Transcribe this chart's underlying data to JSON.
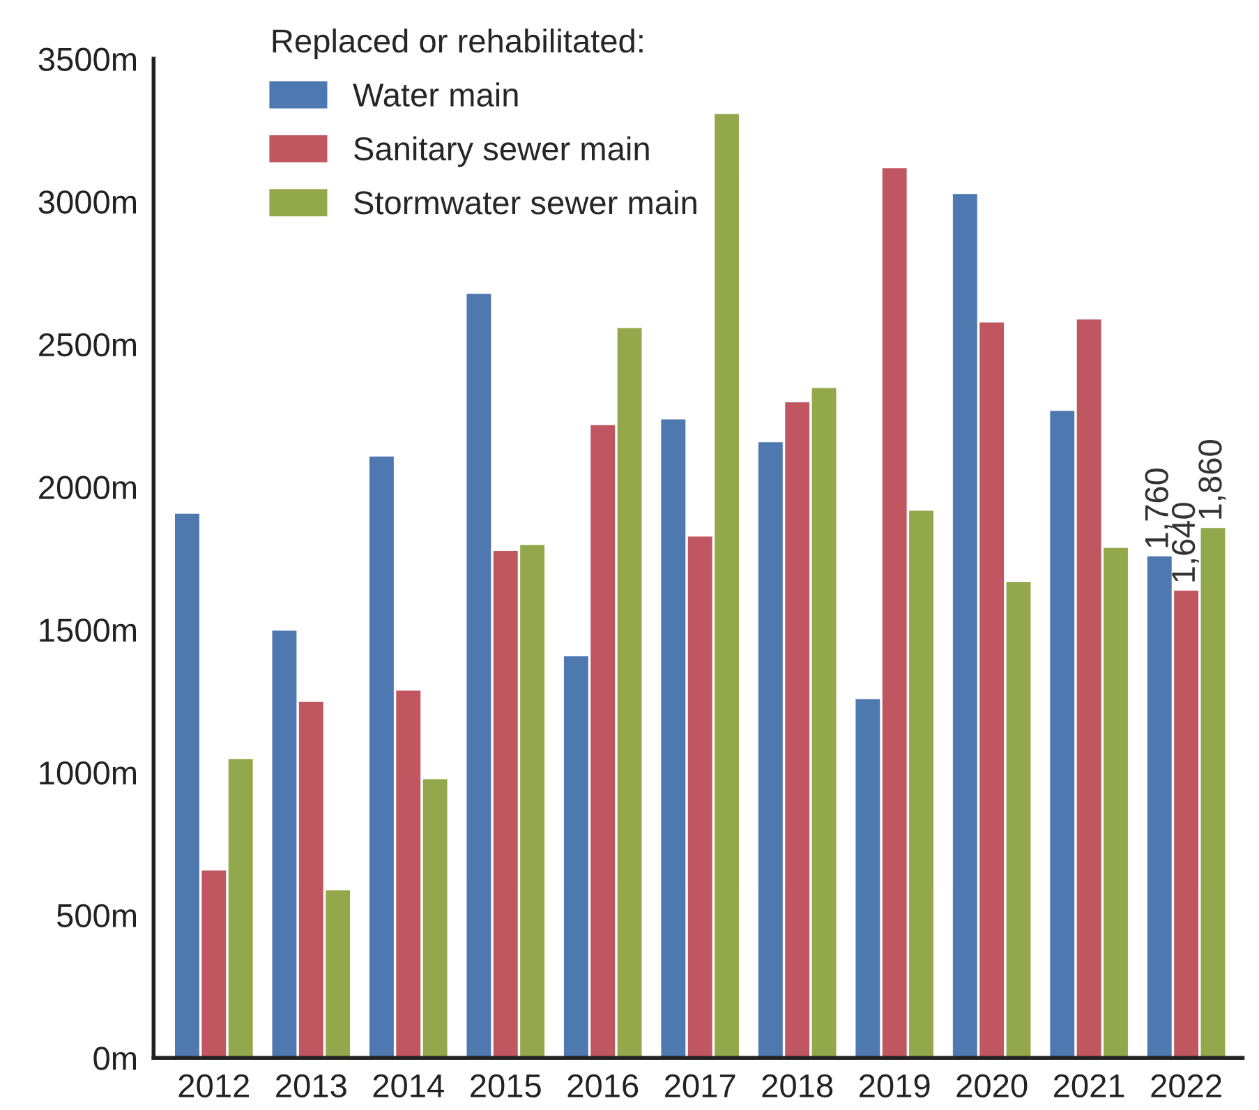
{
  "chart_data": {
    "type": "bar",
    "legend_title": "Replaced or rehabilitated:",
    "categories": [
      "2012",
      "2013",
      "2014",
      "2015",
      "2016",
      "2017",
      "2018",
      "2019",
      "2020",
      "2021",
      "2022"
    ],
    "series": [
      {
        "name": "Water main",
        "color": "#4e79b0",
        "values": [
          1910,
          1500,
          2110,
          2680,
          1410,
          2240,
          2160,
          1260,
          3030,
          2270,
          1760
        ],
        "value_labels": [
          null,
          null,
          null,
          null,
          null,
          null,
          null,
          null,
          null,
          null,
          "1,760"
        ]
      },
      {
        "name": "Sanitary sewer main",
        "color": "#c0565f",
        "values": [
          660,
          1250,
          1290,
          1780,
          2220,
          1830,
          2300,
          3120,
          2580,
          2590,
          1640
        ],
        "value_labels": [
          null,
          null,
          null,
          null,
          null,
          null,
          null,
          null,
          null,
          null,
          "1,640"
        ]
      },
      {
        "name": "Stormwater sewer main",
        "color": "#93a84b",
        "values": [
          1050,
          590,
          980,
          1800,
          2560,
          3310,
          2350,
          1920,
          1670,
          1790,
          1860
        ],
        "value_labels": [
          null,
          null,
          null,
          null,
          null,
          null,
          null,
          null,
          null,
          null,
          "1,860"
        ]
      }
    ],
    "ylim": [
      0,
      3500
    ],
    "yticks": [
      {
        "value": 0,
        "label": "0m"
      },
      {
        "value": 500,
        "label": "500m"
      },
      {
        "value": 1000,
        "label": "1000m"
      },
      {
        "value": 1500,
        "label": "1500m"
      },
      {
        "value": 2000,
        "label": "2000m"
      },
      {
        "value": 2500,
        "label": "2500m"
      },
      {
        "value": 3000,
        "label": "3000m"
      },
      {
        "value": 3500,
        "label": "3500m"
      }
    ],
    "grid": false,
    "legend": "top left"
  }
}
